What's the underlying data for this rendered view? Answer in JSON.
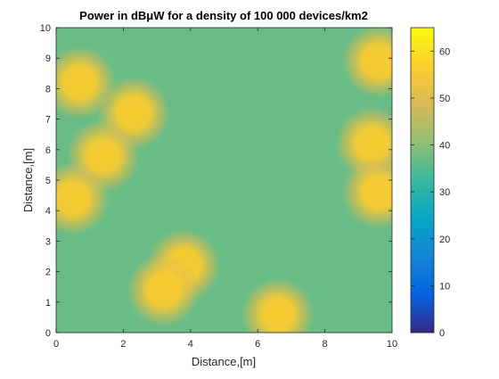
{
  "chart_data": {
    "type": "heatmap",
    "title": "Power in dBμW for a density of 100 000 devices/km2",
    "xlabel": "Distance,[m]",
    "ylabel": "Distance,[m]",
    "xlim": [
      0,
      10
    ],
    "ylim": [
      0,
      10
    ],
    "x_ticks": [
      "0",
      "2",
      "4",
      "6",
      "8",
      "10"
    ],
    "y_ticks": [
      "0",
      "1",
      "2",
      "3",
      "4",
      "5",
      "6",
      "7",
      "8",
      "9",
      "10"
    ],
    "colorbar": {
      "range": [
        0,
        65
      ],
      "ticks": [
        "0",
        "10",
        "20",
        "30",
        "40",
        "50",
        "60"
      ],
      "colormap": "parula",
      "colors": [
        "#352a87",
        "#0363e1",
        "#1485d4",
        "#06a7c6",
        "#38b99e",
        "#92bf73",
        "#d9ba56",
        "#fcce2e",
        "#f9fb0e"
      ]
    },
    "background_level": 37,
    "devices": [
      {
        "x": 0.7,
        "y": 8.2,
        "level": 56
      },
      {
        "x": 2.3,
        "y": 7.2,
        "level": 56
      },
      {
        "x": 1.4,
        "y": 5.8,
        "level": 56
      },
      {
        "x": 0.5,
        "y": 4.4,
        "level": 56
      },
      {
        "x": 3.8,
        "y": 2.2,
        "level": 56
      },
      {
        "x": 3.2,
        "y": 1.4,
        "level": 56
      },
      {
        "x": 6.6,
        "y": 0.6,
        "level": 56
      },
      {
        "x": 9.6,
        "y": 8.9,
        "level": 56
      },
      {
        "x": 9.4,
        "y": 6.2,
        "level": 56
      },
      {
        "x": 9.6,
        "y": 4.6,
        "level": 56
      }
    ]
  }
}
